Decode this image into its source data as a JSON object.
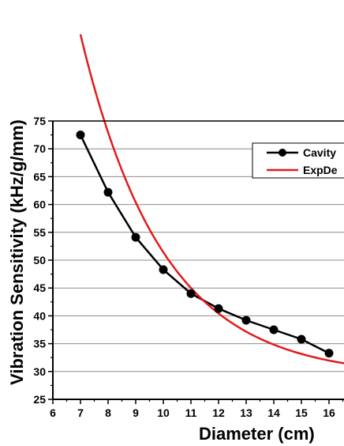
{
  "chart_data": {
    "type": "line",
    "xlabel": "Diameter (cm)",
    "ylabel": "Vibration Sensitivity (kHz/g/mm)",
    "xlim": [
      6,
      16.6
    ],
    "ylim": [
      25,
      75
    ],
    "x_ticks": [
      "6",
      "7",
      "8",
      "9",
      "10",
      "11",
      "12",
      "13",
      "14",
      "15",
      "16"
    ],
    "y_ticks": [
      "25",
      "30",
      "35",
      "40",
      "45",
      "50",
      "55",
      "60",
      "65",
      "70",
      "75"
    ],
    "grid": "horizontal",
    "legend_position": "top-right",
    "series": [
      {
        "name": "Cavity",
        "color": "#000000",
        "marker": "circle",
        "x": [
          7,
          8,
          9,
          10,
          11,
          12,
          13,
          14,
          15,
          16
        ],
        "y": [
          72.5,
          62.2,
          54.1,
          48.3,
          44.0,
          41.3,
          39.2,
          37.5,
          35.8,
          33.3
        ]
      },
      {
        "name": "ExpDe",
        "color": "#e41a1c",
        "marker": "none",
        "fit": {
          "y0": 29.0,
          "A": 650,
          "t": 2.97
        },
        "x_range": [
          7,
          16.6
        ]
      }
    ]
  }
}
